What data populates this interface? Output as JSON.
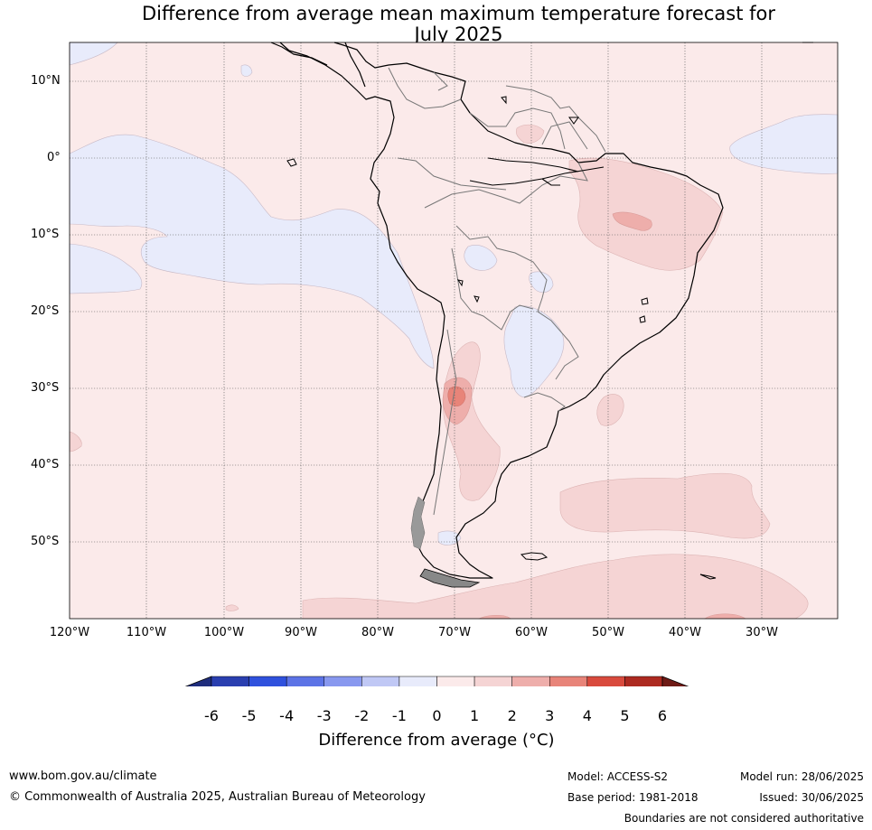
{
  "header": {
    "title_line1": "Difference from average mean maximum temperature forecast for",
    "title_line2": "July 2025"
  },
  "map": {
    "lat_labels": [
      "10°N",
      "0°",
      "10°S",
      "20°S",
      "30°S",
      "40°S",
      "50°S"
    ],
    "lon_labels": [
      "120°W",
      "110°W",
      "100°W",
      "90°W",
      "80°W",
      "70°W",
      "60°W",
      "50°W",
      "40°W",
      "30°W"
    ]
  },
  "colorbar": {
    "ticks": [
      "-6",
      "-5",
      "-4",
      "-3",
      "-2",
      "-1",
      "0",
      "1",
      "2",
      "3",
      "4",
      "5",
      "6"
    ],
    "colors": [
      "#1f2d7d",
      "#2a3fb0",
      "#2f51dd",
      "#5c73e6",
      "#8898ef",
      "#c0c8f5",
      "#e8ebfb",
      "#fbeaea",
      "#f5d4d4",
      "#eeaeab",
      "#e88479",
      "#d94a3d",
      "#ad2a21",
      "#6f1b16"
    ],
    "label": "Difference from average (°C)"
  },
  "footer": {
    "website": "www.bom.gov.au/climate",
    "copyright": "© Commonwealth of Australia 2025, Australian Bureau of Meteorology",
    "model": "Model: ACCESS-S2",
    "base_period": "Base period: 1981-2018",
    "model_run": "Model run: 28/06/2025",
    "issued": "Issued: 30/06/2025",
    "disclaimer": "Boundaries are not considered authoritative"
  }
}
